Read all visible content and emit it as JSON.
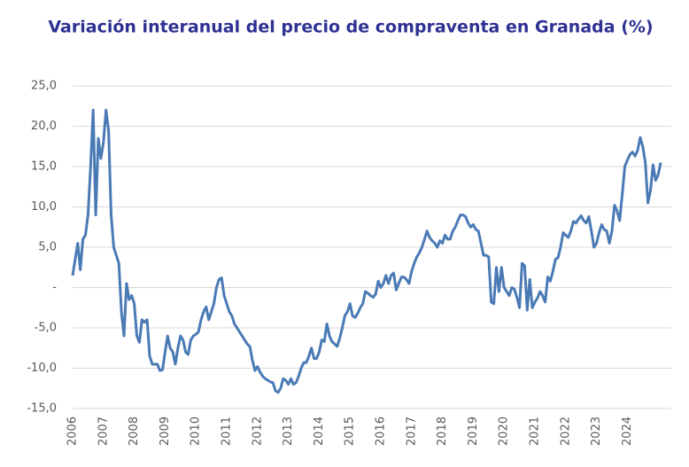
{
  "chart_data": {
    "type": "line",
    "title": "Variación interanual del precio de compraventa en Granada (%)",
    "color": "#4a7ab5",
    "grid": true,
    "ylim": [
      -15,
      25
    ],
    "yticks": [
      {
        "value": -15,
        "label": "-15,0"
      },
      {
        "value": -10,
        "label": "-10,0"
      },
      {
        "value": -5,
        "label": "-5,0"
      },
      {
        "value": 0,
        "label": "-"
      },
      {
        "value": 5,
        "label": "5,0"
      },
      {
        "value": 10,
        "label": "10,0"
      },
      {
        "value": 15,
        "label": "15,0"
      },
      {
        "value": 20,
        "label": "20,0"
      },
      {
        "value": 25,
        "label": "25,0"
      }
    ],
    "categories": [
      "2006",
      null,
      null,
      null,
      null,
      null,
      null,
      null,
      null,
      null,
      null,
      null,
      "2007",
      null,
      null,
      null,
      null,
      null,
      null,
      null,
      null,
      null,
      null,
      null,
      "2008",
      null,
      null,
      null,
      null,
      null,
      null,
      null,
      null,
      null,
      null,
      null,
      "2009",
      null,
      null,
      null,
      null,
      null,
      null,
      null,
      null,
      null,
      null,
      null,
      "2010",
      null,
      null,
      null,
      null,
      null,
      null,
      null,
      null,
      null,
      null,
      null,
      "2011",
      null,
      null,
      null,
      null,
      null,
      null,
      null,
      null,
      null,
      null,
      null,
      "2012",
      null,
      null,
      null,
      null,
      null,
      null,
      null,
      null,
      null,
      null,
      null,
      "2013",
      null,
      null,
      null,
      null,
      null,
      null,
      null,
      null,
      null,
      null,
      null,
      "2014",
      null,
      null,
      null,
      null,
      null,
      null,
      null,
      null,
      null,
      null,
      null,
      "2015",
      null,
      null,
      null,
      null,
      null,
      null,
      null,
      null,
      null,
      null,
      null,
      "2016",
      null,
      null,
      null,
      null,
      null,
      null,
      null,
      null,
      null,
      null,
      null,
      "2017",
      null,
      null,
      null,
      null,
      null,
      null,
      null,
      null,
      null,
      null,
      null,
      "2018",
      null,
      null,
      null,
      null,
      null,
      null,
      null,
      null,
      null,
      null,
      null,
      "2019",
      null,
      null,
      null,
      null,
      null,
      null,
      null,
      null,
      null,
      null,
      null,
      "2020",
      null,
      null,
      null,
      null,
      null,
      null,
      null,
      null,
      null,
      null,
      null,
      "2021",
      null,
      null,
      null,
      null,
      null,
      null,
      null,
      null,
      null,
      null,
      null,
      "2022",
      null,
      null,
      null,
      null,
      null,
      null,
      null,
      null,
      null,
      null,
      null,
      "2023",
      null,
      null,
      null,
      null,
      null,
      null,
      null,
      null,
      null,
      null,
      null,
      "2024",
      null,
      null,
      null,
      null,
      null,
      null,
      null,
      null,
      null,
      null,
      null,
      null,
      null
    ],
    "values": [
      1.5,
      3.5,
      5.5,
      2.2,
      6,
      6.5,
      9,
      15,
      22,
      9,
      18.5,
      16,
      18,
      22,
      19.5,
      9,
      5,
      4,
      3,
      -3,
      -6,
      0.5,
      -1.5,
      -1,
      -2,
      -6,
      -6.8,
      -4,
      -4.3,
      -4,
      -8.5,
      -9.5,
      -9.5,
      -9.5,
      -10.3,
      -10.2,
      -8,
      -6,
      -7.5,
      -8,
      -9.5,
      -7.5,
      -6,
      -6.5,
      -8,
      -8.3,
      -6.5,
      -6,
      -5.8,
      -5.5,
      -4,
      -3,
      -2.4,
      -4,
      -3,
      -2,
      0,
      1,
      1.2,
      -1,
      -2,
      -3,
      -3.5,
      -4.5,
      -5,
      -5.5,
      -6,
      -6.5,
      -7,
      -7.3,
      -9,
      -10.3,
      -9.8,
      -10.5,
      -11,
      -11.3,
      -11.5,
      -11.7,
      -11.8,
      -12.8,
      -13,
      -12.5,
      -11.3,
      -11.5,
      -12,
      -11.3,
      -12,
      -11.8,
      -11,
      -10,
      -9.3,
      -9.3,
      -8.5,
      -7.5,
      -8.8,
      -8.8,
      -8,
      -6.5,
      -6.7,
      -4.5,
      -6,
      -6.7,
      -7,
      -7.3,
      -6.3,
      -5,
      -3.5,
      -3,
      -2,
      -3.5,
      -3.7,
      -3.2,
      -2.5,
      -2,
      -0.5,
      -0.7,
      -1,
      -1.2,
      -0.8,
      0.8,
      0,
      0.5,
      1.5,
      0.5,
      1.5,
      1.8,
      -0.3,
      0.5,
      1.3,
      1.3,
      1,
      0.5,
      2,
      3,
      3.8,
      4.3,
      5,
      6,
      7,
      6.2,
      5.8,
      5.5,
      5,
      5.8,
      5.5,
      6.5,
      6,
      6,
      7,
      7.5,
      8.3,
      9,
      9,
      8.8,
      8,
      7.5,
      7.8,
      7.2,
      7,
      5.5,
      4,
      4,
      3.8,
      -1.8,
      -2,
      2.5,
      -0.5,
      2.5,
      0,
      -0.5,
      -1,
      0,
      -0.2,
      -1.2,
      -2.5,
      3,
      2.7,
      -2.8,
      1,
      -2.5,
      -1.8,
      -1.3,
      -0.5,
      -1,
      -1.8,
      1.3,
      0.8,
      2,
      3.5,
      3.7,
      5,
      6.8,
      6.5,
      6.2,
      7,
      8.2,
      8,
      8.5,
      8.9,
      8.3,
      8,
      8.8,
      7,
      5,
      5.5,
      6.8,
      7.8,
      7.2,
      7,
      5.5,
      7,
      10.2,
      9.5,
      8.3,
      11.5,
      15,
      15.8,
      16.5,
      16.8,
      16.3,
      17,
      18.6,
      17.5,
      15.5,
      10.5,
      12,
      15.2,
      13.3,
      14,
      15.5
    ]
  }
}
